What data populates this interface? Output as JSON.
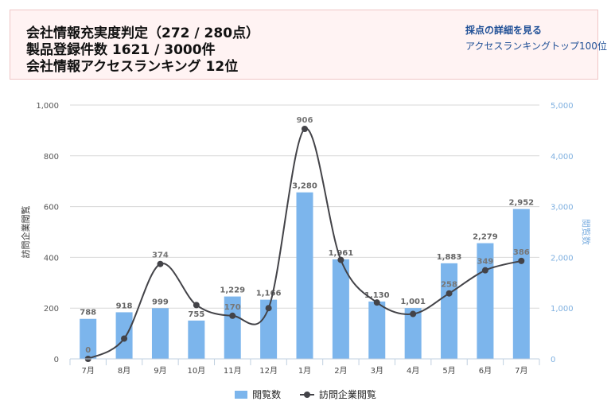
{
  "header": {
    "line1": "会社情報充実度判定（272 / 280点）",
    "line2": "製品登録件数 1621 / 3000件",
    "line3": "会社情報アクセスランキング 12位",
    "detail_link": "採点の詳細を見る",
    "ranking_link": "アクセスランキングトップ100位"
  },
  "colors": {
    "bar": "#7cb5ec",
    "line": "#434348",
    "right_axis": "#7fb0e0"
  },
  "chart_data": {
    "type": "bar+line",
    "categories": [
      "7月",
      "8月",
      "9月",
      "10月",
      "11月",
      "12月",
      "1月",
      "2月",
      "3月",
      "4月",
      "5月",
      "6月",
      "7月"
    ],
    "series": [
      {
        "name": "閲覧数",
        "type": "bar",
        "axis": "right",
        "values": [
          788,
          918,
          999,
          755,
          1229,
          1166,
          3280,
          1961,
          1130,
          1001,
          1883,
          2279,
          2952
        ],
        "labels": [
          "788",
          "918",
          "999",
          "755",
          "1,229",
          "1,166",
          "3,280",
          "1,961",
          "1,130",
          "1,001",
          "1,883",
          "2,279",
          "2,952"
        ]
      },
      {
        "name": "訪問企業閲覧",
        "type": "line",
        "axis": "left",
        "values": [
          0,
          80,
          374,
          212,
          170,
          200,
          906,
          390,
          222,
          177,
          258,
          349,
          386
        ],
        "labels": [
          "0",
          "",
          "374",
          "",
          "170",
          "",
          "906",
          "",
          "",
          "",
          "258",
          "349",
          "386"
        ]
      }
    ],
    "y_left": {
      "label": "訪問企業閲覧",
      "min": 0,
      "max": 1000,
      "ticks": [
        "0",
        "200",
        "400",
        "600",
        "800",
        "1,000"
      ]
    },
    "y_right": {
      "label": "閲覧数",
      "min": 0,
      "max": 5000,
      "ticks": [
        "0",
        "1,000",
        "2,000",
        "3,000",
        "4,000",
        "5,000"
      ]
    },
    "grid": true,
    "legend": "bottom-center"
  }
}
